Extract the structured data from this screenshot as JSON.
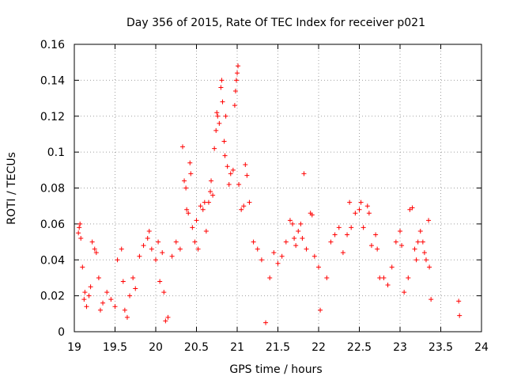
{
  "chart_data": {
    "type": "scatter",
    "title": "Day 356 of 2015, Rate Of TEC Index for receiver p021",
    "xlabel": "GPS time / hours",
    "ylabel": "ROTI / TECUs",
    "xlim": [
      19,
      24
    ],
    "ylim": [
      0,
      0.16
    ],
    "xticks": [
      19,
      19.5,
      20,
      20.5,
      21,
      21.5,
      22,
      22.5,
      23,
      23.5,
      24
    ],
    "xtick_labels": [
      "19",
      "19.5",
      "20",
      "20.5",
      "21",
      "21.5",
      "22",
      "22.5",
      "23",
      "23.5",
      "24"
    ],
    "yticks": [
      0,
      0.02,
      0.04,
      0.06,
      0.08,
      0.1,
      0.12,
      0.14,
      0.16
    ],
    "ytick_labels": [
      "0",
      "0.02",
      "0.04",
      "0.06",
      "0.08",
      "0.1",
      "0.12",
      "0.14",
      "0.16"
    ],
    "grid": true,
    "marker": "+",
    "series_color": "#ff0000",
    "series": [
      {
        "name": "ROTI",
        "points": [
          [
            19.05,
            0.055
          ],
          [
            19.06,
            0.058
          ],
          [
            19.07,
            0.06
          ],
          [
            19.08,
            0.052
          ],
          [
            19.1,
            0.036
          ],
          [
            19.12,
            0.018
          ],
          [
            19.13,
            0.022
          ],
          [
            19.15,
            0.014
          ],
          [
            19.18,
            0.02
          ],
          [
            19.2,
            0.025
          ],
          [
            19.22,
            0.05
          ],
          [
            19.25,
            0.046
          ],
          [
            19.27,
            0.044
          ],
          [
            19.3,
            0.03
          ],
          [
            19.32,
            0.012
          ],
          [
            19.35,
            0.016
          ],
          [
            19.4,
            0.022
          ],
          [
            19.45,
            0.018
          ],
          [
            19.5,
            0.014
          ],
          [
            19.53,
            0.04
          ],
          [
            19.58,
            0.046
          ],
          [
            19.6,
            0.028
          ],
          [
            19.62,
            0.012
          ],
          [
            19.65,
            0.008
          ],
          [
            19.68,
            0.02
          ],
          [
            19.72,
            0.03
          ],
          [
            19.75,
            0.024
          ],
          [
            19.8,
            0.042
          ],
          [
            19.85,
            0.048
          ],
          [
            19.9,
            0.052
          ],
          [
            19.92,
            0.056
          ],
          [
            19.95,
            0.046
          ],
          [
            20.0,
            0.04
          ],
          [
            20.03,
            0.05
          ],
          [
            20.05,
            0.028
          ],
          [
            20.08,
            0.044
          ],
          [
            20.1,
            0.022
          ],
          [
            20.12,
            0.006
          ],
          [
            20.15,
            0.008
          ],
          [
            20.2,
            0.042
          ],
          [
            20.25,
            0.05
          ],
          [
            20.3,
            0.046
          ],
          [
            20.33,
            0.103
          ],
          [
            20.35,
            0.084
          ],
          [
            20.37,
            0.08
          ],
          [
            20.38,
            0.068
          ],
          [
            20.4,
            0.066
          ],
          [
            20.42,
            0.094
          ],
          [
            20.43,
            0.088
          ],
          [
            20.45,
            0.058
          ],
          [
            20.48,
            0.05
          ],
          [
            20.5,
            0.062
          ],
          [
            20.52,
            0.046
          ],
          [
            20.55,
            0.07
          ],
          [
            20.58,
            0.068
          ],
          [
            20.6,
            0.072
          ],
          [
            20.62,
            0.056
          ],
          [
            20.65,
            0.072
          ],
          [
            20.67,
            0.078
          ],
          [
            20.68,
            0.084
          ],
          [
            20.7,
            0.076
          ],
          [
            20.72,
            0.102
          ],
          [
            20.74,
            0.112
          ],
          [
            20.75,
            0.122
          ],
          [
            20.76,
            0.12
          ],
          [
            20.78,
            0.116
          ],
          [
            20.8,
            0.136
          ],
          [
            20.81,
            0.14
          ],
          [
            20.82,
            0.128
          ],
          [
            20.84,
            0.106
          ],
          [
            20.85,
            0.098
          ],
          [
            20.86,
            0.12
          ],
          [
            20.88,
            0.092
          ],
          [
            20.9,
            0.082
          ],
          [
            20.92,
            0.088
          ],
          [
            20.95,
            0.09
          ],
          [
            20.97,
            0.126
          ],
          [
            20.98,
            0.134
          ],
          [
            20.99,
            0.14
          ],
          [
            21.0,
            0.144
          ],
          [
            21.01,
            0.148
          ],
          [
            21.02,
            0.082
          ],
          [
            21.05,
            0.068
          ],
          [
            21.08,
            0.07
          ],
          [
            21.1,
            0.093
          ],
          [
            21.12,
            0.087
          ],
          [
            21.15,
            0.072
          ],
          [
            21.2,
            0.05
          ],
          [
            21.25,
            0.046
          ],
          [
            21.3,
            0.04
          ],
          [
            21.35,
            0.005
          ],
          [
            21.4,
            0.03
          ],
          [
            21.45,
            0.044
          ],
          [
            21.5,
            0.038
          ],
          [
            21.55,
            0.042
          ],
          [
            21.6,
            0.05
          ],
          [
            21.65,
            0.062
          ],
          [
            21.68,
            0.06
          ],
          [
            21.7,
            0.052
          ],
          [
            21.72,
            0.048
          ],
          [
            21.75,
            0.056
          ],
          [
            21.78,
            0.06
          ],
          [
            21.8,
            0.052
          ],
          [
            21.82,
            0.088
          ],
          [
            21.85,
            0.046
          ],
          [
            21.9,
            0.066
          ],
          [
            21.92,
            0.065
          ],
          [
            21.95,
            0.042
          ],
          [
            22.0,
            0.036
          ],
          [
            22.02,
            0.012
          ],
          [
            22.1,
            0.03
          ],
          [
            22.15,
            0.05
          ],
          [
            22.2,
            0.054
          ],
          [
            22.25,
            0.058
          ],
          [
            22.3,
            0.044
          ],
          [
            22.35,
            0.054
          ],
          [
            22.38,
            0.072
          ],
          [
            22.4,
            0.058
          ],
          [
            22.45,
            0.066
          ],
          [
            22.5,
            0.068
          ],
          [
            22.52,
            0.072
          ],
          [
            22.55,
            0.058
          ],
          [
            22.6,
            0.07
          ],
          [
            22.62,
            0.066
          ],
          [
            22.65,
            0.048
          ],
          [
            22.7,
            0.054
          ],
          [
            22.72,
            0.046
          ],
          [
            22.75,
            0.03
          ],
          [
            22.8,
            0.03
          ],
          [
            22.85,
            0.026
          ],
          [
            22.9,
            0.036
          ],
          [
            22.95,
            0.05
          ],
          [
            23.0,
            0.056
          ],
          [
            23.02,
            0.048
          ],
          [
            23.05,
            0.022
          ],
          [
            23.1,
            0.03
          ],
          [
            23.12,
            0.068
          ],
          [
            23.15,
            0.069
          ],
          [
            23.18,
            0.046
          ],
          [
            23.2,
            0.04
          ],
          [
            23.22,
            0.05
          ],
          [
            23.25,
            0.056
          ],
          [
            23.28,
            0.05
          ],
          [
            23.3,
            0.044
          ],
          [
            23.32,
            0.04
          ],
          [
            23.35,
            0.062
          ],
          [
            23.36,
            0.036
          ],
          [
            23.38,
            0.018
          ],
          [
            23.72,
            0.017
          ],
          [
            23.73,
            0.009
          ]
        ]
      }
    ]
  }
}
